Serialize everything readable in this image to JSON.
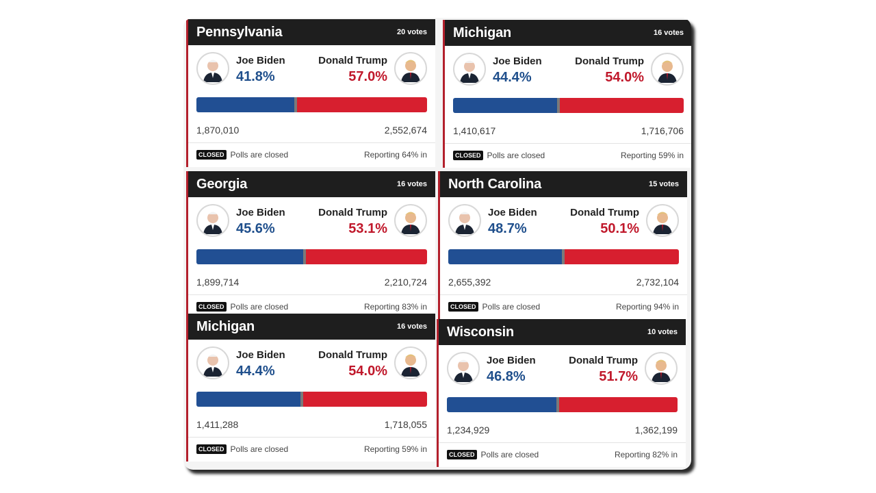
{
  "cards": [
    {
      "state": "Pennsylvania",
      "votes": "20 votes",
      "biden_name": "Joe Biden",
      "biden_pct": "41.8%",
      "biden_count": "1,870,010",
      "trump_name": "Donald Trump",
      "trump_pct": "57.0%",
      "trump_count": "2,552,674",
      "closed_label": "CLOSED",
      "polls_text": "Polls are closed",
      "reporting": "Reporting 64% in",
      "blue_share": 0.423
    },
    {
      "state": "Michigan",
      "votes": "16 votes",
      "biden_name": "Joe Biden",
      "biden_pct": "44.4%",
      "biden_count": "1,410,617",
      "trump_name": "Donald Trump",
      "trump_pct": "54.0%",
      "trump_count": "1,716,706",
      "closed_label": "CLOSED",
      "polls_text": "Polls are closed",
      "reporting": "Reporting 59% in",
      "blue_share": 0.451
    },
    {
      "state": "Georgia",
      "votes": "16 votes",
      "biden_name": "Joe Biden",
      "biden_pct": "45.6%",
      "biden_count": "1,899,714",
      "trump_name": "Donald Trump",
      "trump_pct": "53.1%",
      "trump_count": "2,210,724",
      "closed_label": "CLOSED",
      "polls_text": "Polls are closed",
      "reporting": "Reporting 83% in",
      "blue_share": 0.462
    },
    {
      "state": "North Carolina",
      "votes": "15 votes",
      "biden_name": "Joe Biden",
      "biden_pct": "48.7%",
      "biden_count": "2,655,392",
      "trump_name": "Donald Trump",
      "trump_pct": "50.1%",
      "trump_count": "2,732,104",
      "closed_label": "CLOSED",
      "polls_text": "Polls are closed",
      "reporting": "Reporting 94% in",
      "blue_share": 0.493
    },
    {
      "state": "Michigan",
      "votes": "16 votes",
      "biden_name": "Joe Biden",
      "biden_pct": "44.4%",
      "biden_count": "1,411,288",
      "trump_name": "Donald Trump",
      "trump_pct": "54.0%",
      "trump_count": "1,718,055",
      "closed_label": "CLOSED",
      "polls_text": "Polls are closed",
      "reporting": "Reporting 59% in",
      "blue_share": 0.451
    },
    {
      "state": "Wisconsin",
      "votes": "10 votes",
      "biden_name": "Joe Biden",
      "biden_pct": "46.8%",
      "biden_count": "1,234,929",
      "trump_name": "Donald Trump",
      "trump_pct": "51.7%",
      "trump_count": "1,362,199",
      "closed_label": "CLOSED",
      "polls_text": "Polls are closed",
      "reporting": "Reporting 82% in",
      "blue_share": 0.475
    }
  ],
  "colors": {
    "biden": "#214f93",
    "trump": "#d71f2f"
  }
}
